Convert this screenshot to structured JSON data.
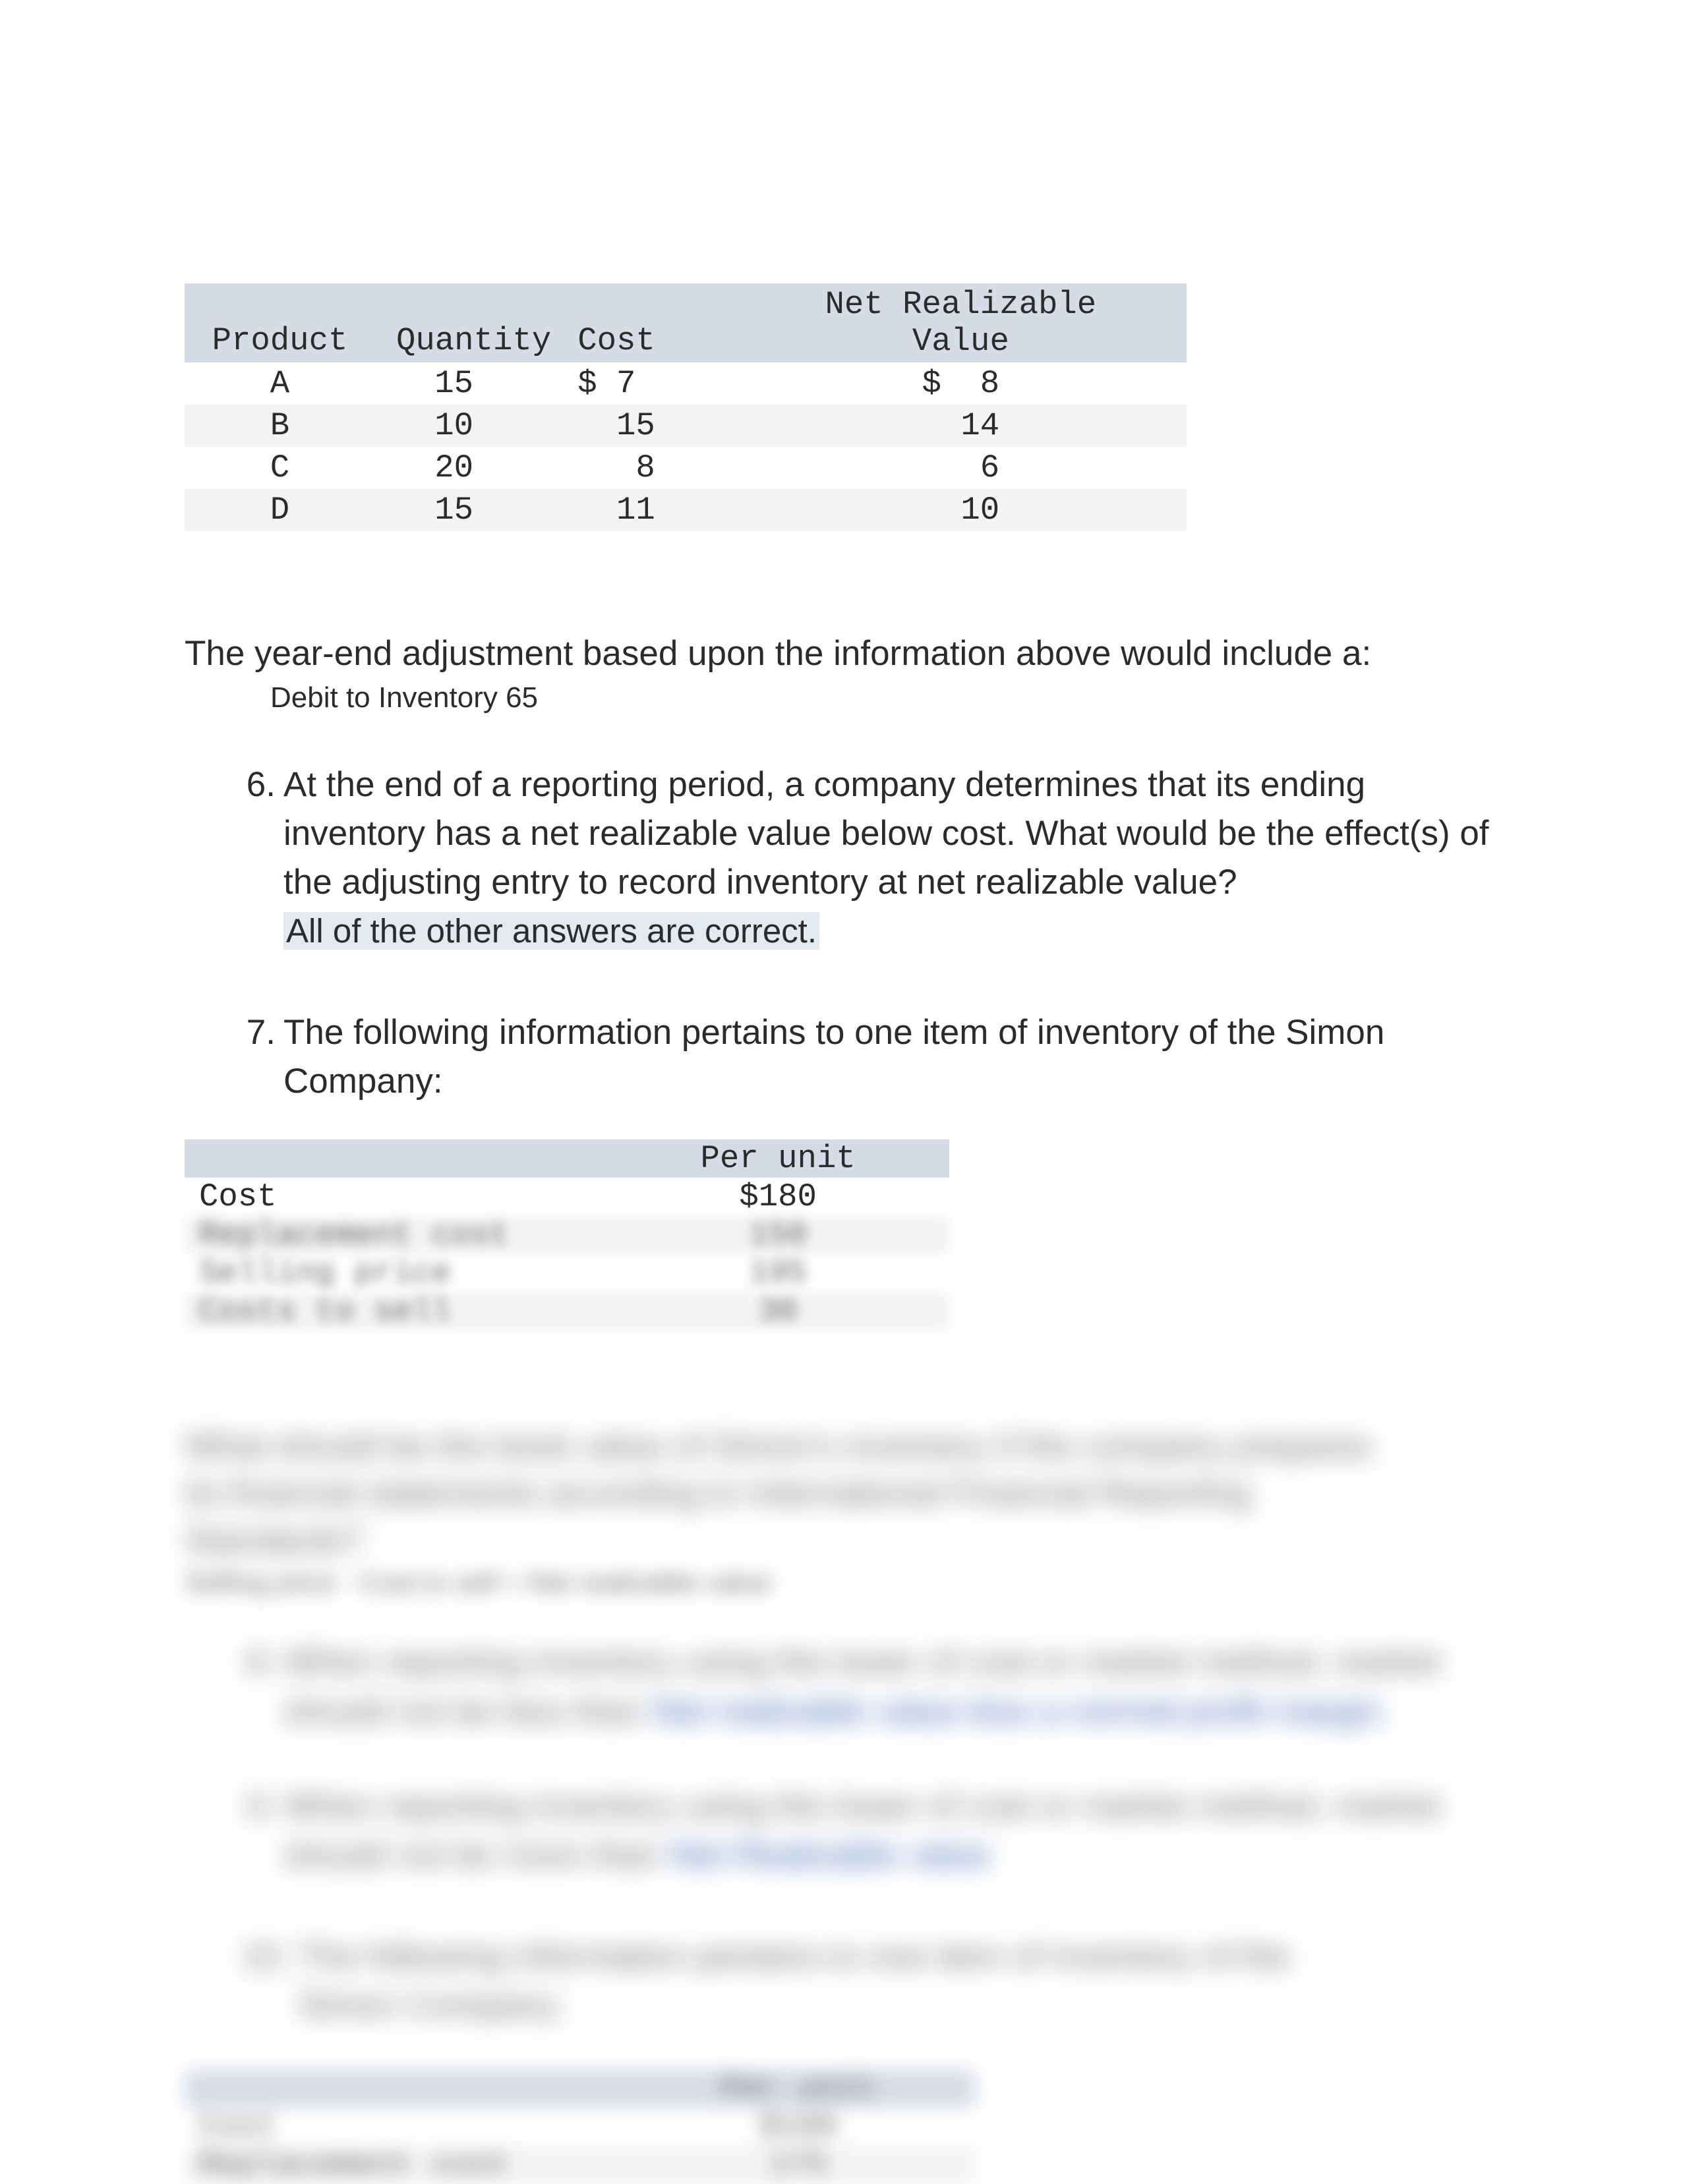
{
  "table1": {
    "headers": {
      "c1": "Product",
      "c2": "Quantity",
      "c3": "Cost",
      "c4top": "Net Realizable",
      "c4bot": "Value"
    },
    "rows": [
      {
        "product": "A",
        "qty": "15",
        "cost": "$ 7",
        "nrv": "$  8"
      },
      {
        "product": "B",
        "qty": "10",
        "cost": "  15",
        "nrv": "  14"
      },
      {
        "product": "C",
        "qty": "20",
        "cost": "   8",
        "nrv": "   6"
      },
      {
        "product": "D",
        "qty": "15",
        "cost": "  11",
        "nrv": "  10"
      }
    ]
  },
  "q_intro": "The year-end adjustment based upon the information above would include a:",
  "q_intro_answer": "Debit to Inventory 65",
  "q6": {
    "num": "6.",
    "text": "At the end of a reporting period, a company determines that its ending inventory has a net realizable value below cost. What would be the effect(s) of the adjusting entry to record inventory at net realizable value?",
    "answer": "All of the other answers are correct."
  },
  "q7": {
    "num": "7.",
    "text": "The following information pertains to one item of inventory of the Simon Company:"
  },
  "simon": {
    "per_unit_hdr": "Per unit",
    "rows": [
      {
        "label": "Cost",
        "val": "$180"
      },
      {
        "label": "Replacement cost",
        "val": "150"
      },
      {
        "label": "Selling price",
        "val": "195"
      },
      {
        "label": "Costs to sell",
        "val": "30"
      }
    ]
  },
  "blurred": {
    "para1_l1": "What should be the book value of Simon's inventory if the company prepares",
    "para1_l2": "its financial statements according to International Financial Reporting",
    "para1_l3": "Standards?",
    "para1_ans": "Selling price - Cost to sell = Net realizable value",
    "q8_num": "8.",
    "q8_a": "When reporting inventory using the lower of cost or market method, market",
    "q8_b": "should not be less than ",
    "q8_link": "Net realizable value less a normal profit margin.",
    "q9_num": "9.",
    "q9_a": "When reporting inventory using the lower of cost or market method, market",
    "q9_b": "should not be more than ",
    "q9_link": "Net Realizable value",
    "q10_num": "10.",
    "q10_a": "The following information pertains to one item of inventory of the",
    "q10_b": "Simon Company:",
    "t2_hdr": "Per unit",
    "t2_r1a": "Cost",
    "t2_r1b": "$180",
    "t2_r2a": "Replacement cost",
    "t2_r2b": "175"
  }
}
